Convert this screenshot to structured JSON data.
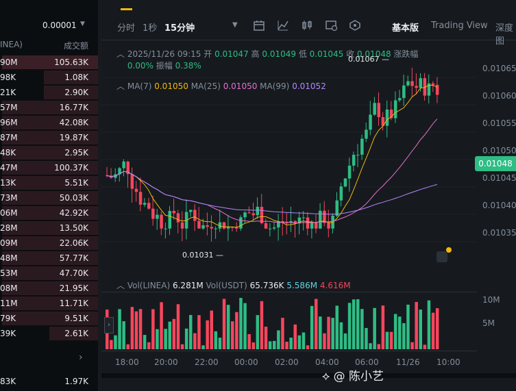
{
  "left_panel": {
    "decimal_select": "0.00001",
    "col_left": "INEA)",
    "col_right": "成交额",
    "rows": [
      {
        "a": "90M",
        "b": "105.63K",
        "fill": 0.98
      },
      {
        "a": "98K",
        "b": "1.08K",
        "fill": 0.55
      },
      {
        "a": "21K",
        "b": "2.90K",
        "fill": 0.55
      },
      {
        "a": "57M",
        "b": "16.77K",
        "fill": 0.98
      },
      {
        "a": "96M",
        "b": "42.08K",
        "fill": 0.98
      },
      {
        "a": "87M",
        "b": "19.87K",
        "fill": 0.98
      },
      {
        "a": "48K",
        "b": "2.95K",
        "fill": 0.98
      },
      {
        "a": "47M",
        "b": "100.37K",
        "fill": 0.98
      },
      {
        "a": "13K",
        "b": "5.51K",
        "fill": 0.98
      },
      {
        "a": "73M",
        "b": "50.03K",
        "fill": 0.98
      },
      {
        "a": "06M",
        "b": "42.92K",
        "fill": 0.98
      },
      {
        "a": "28M",
        "b": "13.50K",
        "fill": 0.98
      },
      {
        "a": "09M",
        "b": "22.06K",
        "fill": 0.98
      },
      {
        "a": "48M",
        "b": "57.77K",
        "fill": 0.98
      },
      {
        "a": "53M",
        "b": "47.70K",
        "fill": 0.98
      },
      {
        "a": "08M",
        "b": "21.95K",
        "fill": 0.98
      },
      {
        "a": "11M",
        "b": "11.71K",
        "fill": 0.98
      },
      {
        "a": "79K",
        "b": "9.51K",
        "fill": 0.98
      },
      {
        "a": "39K",
        "b": "2.61K",
        "fill": 0.5
      }
    ],
    "more_icon": "chevron-right-icon",
    "bottom": {
      "a": "83K",
      "b": "1.97K"
    }
  },
  "toolbar": {
    "intervals": [
      "分时",
      "1秒",
      "15分钟"
    ],
    "active_interval": "15分钟",
    "icons": [
      "chevron-down-icon",
      "indicator-icon",
      "draw-icon",
      "candle-type-icon",
      "settings-icon",
      "layers-icon"
    ],
    "views": [
      "基本版",
      "Trading View",
      "深度图"
    ],
    "active_view": "基本版"
  },
  "info": {
    "datetime": "2025/11/26 09:15",
    "open_label": "开",
    "open": "0.01047",
    "high_label": "高",
    "high": "0.01049",
    "low_label": "低",
    "low": "0.01045",
    "close_label": "收",
    "close": "0.01048",
    "change_label": "涨跌幅",
    "change": "0.00%",
    "amp_label": "振幅",
    "amp": "0.38%"
  },
  "ma": {
    "ma7_label": "MA(7)",
    "ma7": "0.01050",
    "ma25_label": "MA(25)",
    "ma25": "0.01050",
    "ma99_label": "MA(99)",
    "ma99": "0.01052"
  },
  "price_axis": [
    "0.01065",
    "0.01060",
    "0.01055",
    "0.01050",
    "0.01045",
    "0.01040",
    "0.01035"
  ],
  "current_price": "0.01048",
  "high_marker": "0.01067",
  "low_marker": "0.01031",
  "volume": {
    "label": "Vol(LINEA)",
    "value": "6.281M",
    "usdt_label": "Vol(USDT)",
    "usdt_value": "65.736K",
    "ma1": "5.586M",
    "ma2": "4.616M",
    "axis": [
      "10M",
      "5M"
    ]
  },
  "time_axis": [
    "18:00",
    "20:00",
    "22:00",
    "00:00",
    "02:00",
    "04:00",
    "06:00",
    "11/26",
    "10:00"
  ],
  "watermark": "@ 陈小艺",
  "colors": {
    "up": "#2ebd85",
    "down": "#f6465d",
    "accent": "#f0b90b",
    "ma7": "#f0b90b",
    "ma25": "#e86fd0",
    "ma99": "#b388ff"
  }
}
